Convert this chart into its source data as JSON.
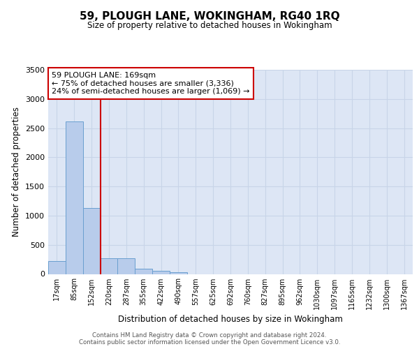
{
  "title": "59, PLOUGH LANE, WOKINGHAM, RG40 1RQ",
  "subtitle": "Size of property relative to detached houses in Wokingham",
  "xlabel": "Distribution of detached houses by size in Wokingham",
  "ylabel": "Number of detached properties",
  "bin_labels": [
    "17sqm",
    "85sqm",
    "152sqm",
    "220sqm",
    "287sqm",
    "355sqm",
    "422sqm",
    "490sqm",
    "557sqm",
    "625sqm",
    "692sqm",
    "760sqm",
    "827sqm",
    "895sqm",
    "962sqm",
    "1030sqm",
    "1097sqm",
    "1165sqm",
    "1232sqm",
    "1300sqm",
    "1367sqm"
  ],
  "bar_values": [
    220,
    2620,
    1130,
    270,
    270,
    90,
    50,
    30,
    0,
    0,
    0,
    0,
    0,
    0,
    0,
    0,
    0,
    0,
    0,
    0,
    0
  ],
  "bar_color": "#b8cceb",
  "bar_edge_color": "#6a9fd0",
  "grid_color": "#c8d4e8",
  "background_color": "#dde6f5",
  "vline_color": "#cc0000",
  "annotation_line1": "59 PLOUGH LANE: 169sqm",
  "annotation_line2": "← 75% of detached houses are smaller (3,336)",
  "annotation_line3": "24% of semi-detached houses are larger (1,069) →",
  "annotation_box_color": "#ffffff",
  "annotation_border_color": "#cc0000",
  "ylim_max": 3500,
  "yticks": [
    0,
    500,
    1000,
    1500,
    2000,
    2500,
    3000,
    3500
  ],
  "footer_line1": "Contains HM Land Registry data © Crown copyright and database right 2024.",
  "footer_line2": "Contains public sector information licensed under the Open Government Licence v3.0."
}
